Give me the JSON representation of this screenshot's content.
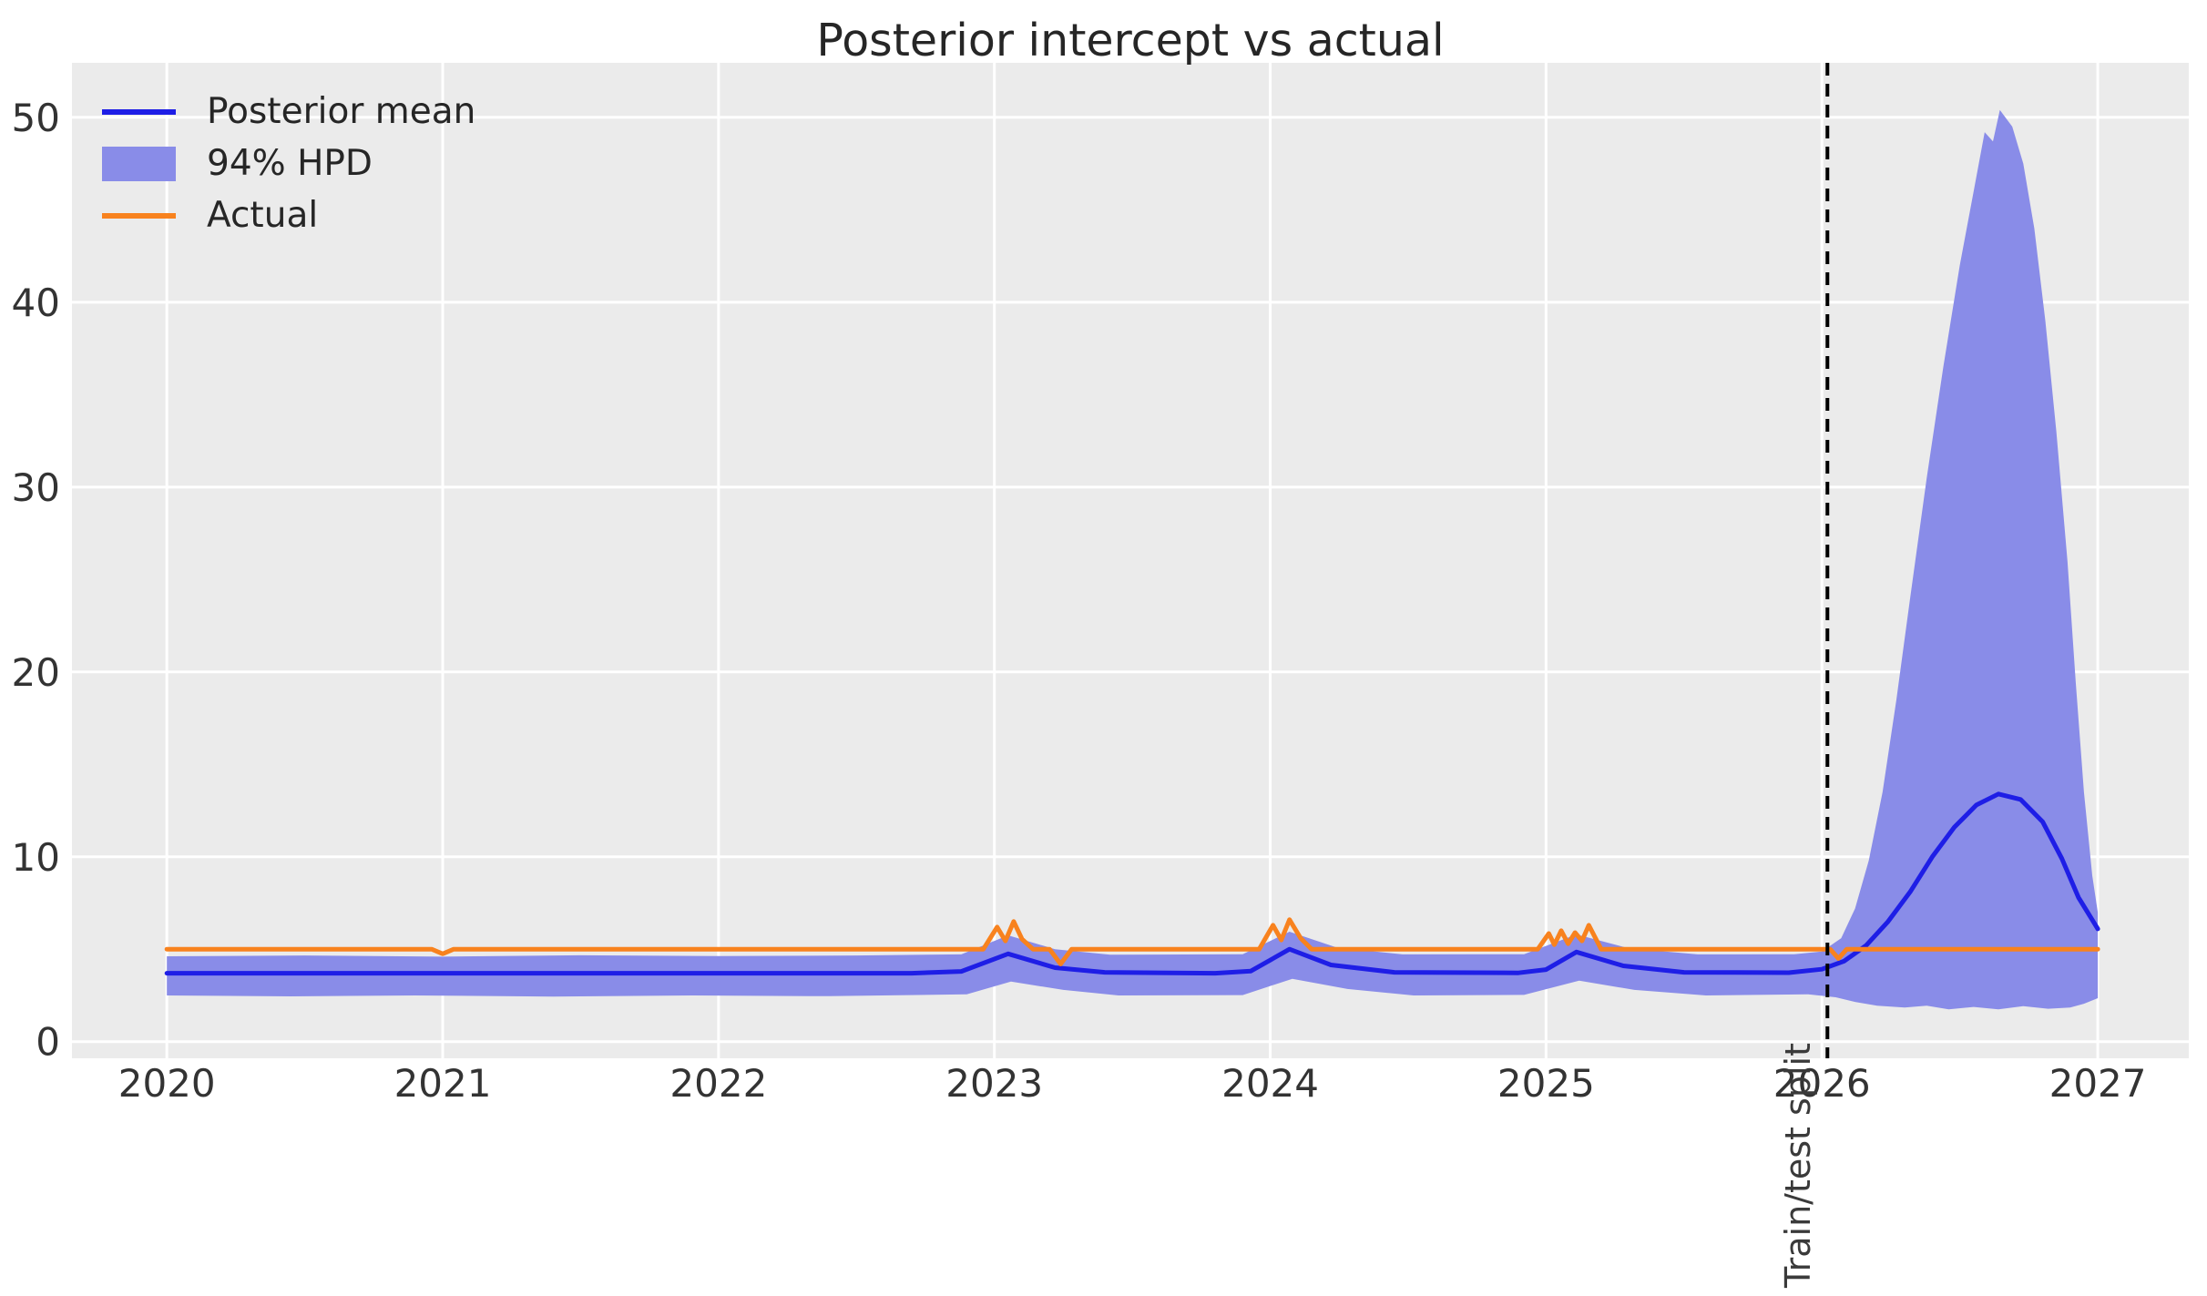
{
  "chart_data": {
    "type": "line",
    "title": "Posterior intercept vs actual",
    "xlabel": "",
    "ylabel": "",
    "x_range": [
      2019.656,
      2027.33
    ],
    "y_range": [
      -0.9,
      52.95
    ],
    "grid": true,
    "legend_position": "upper left",
    "xticks": [
      2020,
      2021,
      2022,
      2023,
      2024,
      2025,
      2026,
      2027
    ],
    "xtick_labels": [
      "2020",
      "2021",
      "2022",
      "2023",
      "2024",
      "2025",
      "2026",
      "2027"
    ],
    "yticks": [
      0,
      10,
      20,
      30,
      40,
      50
    ],
    "ytick_labels": [
      "0",
      "10",
      "20",
      "30",
      "40",
      "50"
    ],
    "colors": {
      "plot_background": "#ebebeb",
      "grid": "#ffffff",
      "posterior_mean": "#1e1ee6",
      "hpd_band": "#898ce8",
      "actual": "#f8821e",
      "split_line": "#000000",
      "text": "#333333"
    },
    "vline": {
      "x": 2026.02,
      "label": "Train/test split",
      "style": "dashed",
      "color": "#000000"
    },
    "series": [
      {
        "name": "94% HPD",
        "type": "band",
        "color": "#898ce8",
        "upper": [
          [
            2020.0,
            4.62
          ],
          [
            2020.5,
            4.66
          ],
          [
            2021.0,
            4.6
          ],
          [
            2021.5,
            4.67
          ],
          [
            2022.0,
            4.63
          ],
          [
            2022.5,
            4.66
          ],
          [
            2022.88,
            4.72
          ],
          [
            2023.05,
            5.75
          ],
          [
            2023.22,
            5.0
          ],
          [
            2023.42,
            4.7
          ],
          [
            2023.9,
            4.73
          ],
          [
            2024.07,
            5.95
          ],
          [
            2024.24,
            5.1
          ],
          [
            2024.48,
            4.72
          ],
          [
            2024.92,
            4.73
          ],
          [
            2025.11,
            5.8
          ],
          [
            2025.3,
            5.05
          ],
          [
            2025.55,
            4.72
          ],
          [
            2025.9,
            4.73
          ],
          [
            2026.0,
            4.88
          ],
          [
            2026.07,
            5.6
          ],
          [
            2026.12,
            7.2
          ],
          [
            2026.17,
            9.8
          ],
          [
            2026.22,
            13.5
          ],
          [
            2026.27,
            18.5
          ],
          [
            2026.32,
            24.0
          ],
          [
            2026.38,
            30.5
          ],
          [
            2026.44,
            36.5
          ],
          [
            2026.5,
            42.0
          ],
          [
            2026.55,
            46.0
          ],
          [
            2026.59,
            49.2
          ],
          [
            2026.62,
            48.7
          ],
          [
            2026.645,
            50.4
          ],
          [
            2026.69,
            49.5
          ],
          [
            2026.73,
            47.5
          ],
          [
            2026.77,
            44.0
          ],
          [
            2026.81,
            39.0
          ],
          [
            2026.85,
            33.0
          ],
          [
            2026.89,
            26.0
          ],
          [
            2026.92,
            19.5
          ],
          [
            2026.95,
            13.5
          ],
          [
            2026.98,
            9.0
          ],
          [
            2027.0,
            7.0
          ]
        ],
        "lower": [
          [
            2020.0,
            2.5
          ],
          [
            2020.45,
            2.45
          ],
          [
            2020.9,
            2.5
          ],
          [
            2021.4,
            2.44
          ],
          [
            2021.9,
            2.5
          ],
          [
            2022.4,
            2.46
          ],
          [
            2022.9,
            2.56
          ],
          [
            2023.06,
            3.25
          ],
          [
            2023.25,
            2.8
          ],
          [
            2023.45,
            2.5
          ],
          [
            2023.9,
            2.52
          ],
          [
            2024.08,
            3.4
          ],
          [
            2024.28,
            2.85
          ],
          [
            2024.52,
            2.5
          ],
          [
            2024.92,
            2.53
          ],
          [
            2025.12,
            3.3
          ],
          [
            2025.32,
            2.8
          ],
          [
            2025.58,
            2.5
          ],
          [
            2025.95,
            2.56
          ],
          [
            2026.05,
            2.4
          ],
          [
            2026.12,
            2.15
          ],
          [
            2026.2,
            1.95
          ],
          [
            2026.3,
            1.85
          ],
          [
            2026.38,
            1.95
          ],
          [
            2026.46,
            1.75
          ],
          [
            2026.55,
            1.88
          ],
          [
            2026.64,
            1.75
          ],
          [
            2026.73,
            1.92
          ],
          [
            2026.82,
            1.78
          ],
          [
            2026.9,
            1.85
          ],
          [
            2026.95,
            2.05
          ],
          [
            2027.0,
            2.35
          ]
        ]
      },
      {
        "name": "Posterior mean",
        "type": "line",
        "color": "#1e1ee6",
        "width": 5,
        "points": [
          [
            2020.0,
            3.7
          ],
          [
            2022.7,
            3.7
          ],
          [
            2022.88,
            3.8
          ],
          [
            2023.05,
            4.75
          ],
          [
            2023.22,
            4.0
          ],
          [
            2023.4,
            3.75
          ],
          [
            2023.8,
            3.7
          ],
          [
            2023.93,
            3.82
          ],
          [
            2024.07,
            5.0
          ],
          [
            2024.22,
            4.15
          ],
          [
            2024.45,
            3.75
          ],
          [
            2024.9,
            3.72
          ],
          [
            2025.0,
            3.9
          ],
          [
            2025.11,
            4.85
          ],
          [
            2025.28,
            4.1
          ],
          [
            2025.5,
            3.75
          ],
          [
            2025.88,
            3.73
          ],
          [
            2026.0,
            3.92
          ],
          [
            2026.08,
            4.35
          ],
          [
            2026.16,
            5.2
          ],
          [
            2026.24,
            6.5
          ],
          [
            2026.32,
            8.1
          ],
          [
            2026.4,
            10.0
          ],
          [
            2026.48,
            11.6
          ],
          [
            2026.56,
            12.8
          ],
          [
            2026.64,
            13.4
          ],
          [
            2026.72,
            13.1
          ],
          [
            2026.8,
            11.9
          ],
          [
            2026.87,
            9.9
          ],
          [
            2026.93,
            7.8
          ],
          [
            2027.0,
            6.1
          ]
        ]
      },
      {
        "name": "Actual",
        "type": "line",
        "color": "#f8821e",
        "width": 5,
        "points": [
          [
            2020.0,
            5
          ],
          [
            2020.96,
            5
          ],
          [
            2021.0,
            4.75
          ],
          [
            2021.04,
            5
          ],
          [
            2022.0,
            5
          ],
          [
            2022.96,
            5
          ],
          [
            2023.01,
            6.2
          ],
          [
            2023.04,
            5.45
          ],
          [
            2023.07,
            6.5
          ],
          [
            2023.1,
            5.55
          ],
          [
            2023.14,
            5
          ],
          [
            2023.2,
            5
          ],
          [
            2023.24,
            4.2
          ],
          [
            2023.28,
            5
          ],
          [
            2023.96,
            5
          ],
          [
            2024.01,
            6.3
          ],
          [
            2024.04,
            5.5
          ],
          [
            2024.07,
            6.6
          ],
          [
            2024.11,
            5.6
          ],
          [
            2024.15,
            5
          ],
          [
            2024.97,
            5
          ],
          [
            2025.01,
            5.85
          ],
          [
            2025.03,
            5.25
          ],
          [
            2025.055,
            6.0
          ],
          [
            2025.08,
            5.3
          ],
          [
            2025.105,
            5.9
          ],
          [
            2025.13,
            5.45
          ],
          [
            2025.155,
            6.3
          ],
          [
            2025.2,
            5
          ],
          [
            2026.03,
            5
          ],
          [
            2026.06,
            4.5
          ],
          [
            2026.09,
            5
          ],
          [
            2027.0,
            5
          ]
        ]
      }
    ]
  },
  "legend": {
    "items": [
      {
        "label": "Posterior mean",
        "swatch": "line",
        "color": "#1e1ee6"
      },
      {
        "label": "94% HPD",
        "swatch": "patch",
        "color": "#898ce8"
      },
      {
        "label": "Actual",
        "swatch": "line",
        "color": "#f8821e"
      }
    ]
  },
  "annotations": {
    "split_label": "Train/test split"
  }
}
